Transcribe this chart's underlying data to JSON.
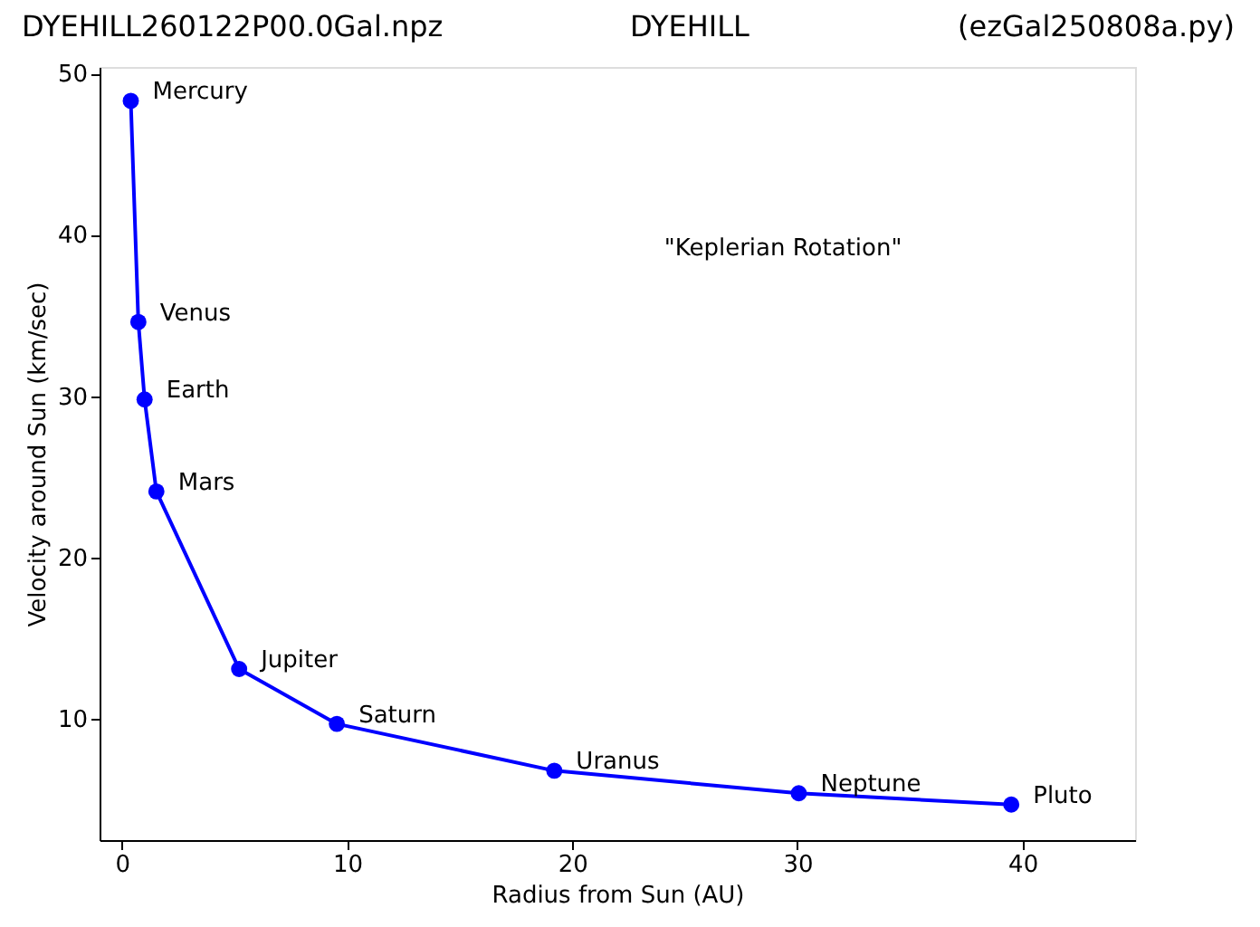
{
  "chart_data": {
    "type": "line",
    "title": "DYEHILL260122P00.0Gal.npz",
    "xlabel": "Radius from Sun (AU)",
    "ylabel": "Velocity around Sun (km/sec)",
    "x": [
      0.387,
      0.723,
      1.0,
      1.524,
      5.2,
      9.54,
      19.2,
      30.06,
      39.5
    ],
    "series": [
      {
        "color": "#0000ff",
        "values": [
          48.3,
          34.6,
          29.8,
          24.1,
          13.1,
          9.7,
          6.8,
          5.4,
          4.7
        ]
      }
    ],
    "annotations": [
      "DYEHILL",
      "(ezGal250808a.py)",
      "\"Keplerian Rotation\"",
      {
        "text": "Mercury",
        "x": 0.387,
        "y": 48.3
      },
      {
        "text": "Venus",
        "x": 0.723,
        "y": 34.6
      },
      {
        "text": "Earth",
        "x": 1.0,
        "y": 29.8
      },
      {
        "text": "Mars",
        "x": 1.524,
        "y": 24.1
      },
      {
        "text": "Jupiter",
        "x": 5.2,
        "y": 13.1
      },
      {
        "text": "Saturn",
        "x": 9.54,
        "y": 9.7
      },
      {
        "text": "Uranus",
        "x": 19.2,
        "y": 6.8
      },
      {
        "text": "Neptune",
        "x": 30.06,
        "y": 5.4
      },
      {
        "text": "Pluto",
        "x": 39.5,
        "y": 4.7
      }
    ],
    "xlim": [
      -1.0,
      45.0
    ],
    "ylim": [
      2.5,
      50.4
    ],
    "xticks": [
      0,
      10,
      20,
      30,
      40
    ],
    "yticks": [
      10,
      20,
      30,
      40,
      50
    ],
    "grid": false,
    "marker": "circle",
    "line_style": "solid"
  }
}
